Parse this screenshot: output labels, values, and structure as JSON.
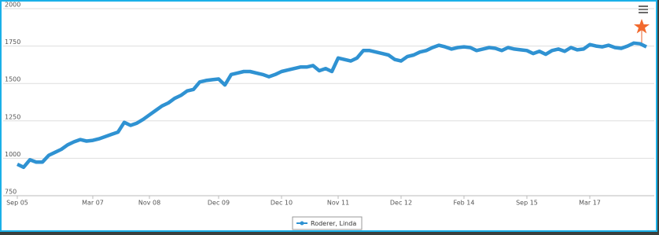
{
  "chart_data": {
    "type": "line",
    "categories": [
      "Sep 05",
      null,
      null,
      null,
      null,
      null,
      null,
      null,
      null,
      null,
      null,
      null,
      "Mar 07",
      null,
      null,
      null,
      null,
      null,
      null,
      null,
      null,
      "Nov 08",
      null,
      null,
      null,
      null,
      null,
      null,
      null,
      null,
      null,
      null,
      "Dec 09",
      null,
      null,
      null,
      null,
      null,
      null,
      null,
      null,
      null,
      "Dec 10",
      null,
      null,
      null,
      null,
      null,
      null,
      null,
      null,
      "Nov 11",
      null,
      null,
      null,
      null,
      null,
      null,
      null,
      null,
      null,
      "Dec 12",
      null,
      null,
      null,
      null,
      null,
      null,
      null,
      null,
      null,
      "Feb 14",
      null,
      null,
      null,
      null,
      null,
      null,
      null,
      null,
      null,
      "Sep 15",
      null,
      null,
      null,
      null,
      null,
      null,
      null,
      null,
      null,
      "Mar 17",
      null,
      null,
      null,
      null,
      null,
      null,
      null,
      null,
      null
    ],
    "series": [
      {
        "name": "Roderer, Linda",
        "color": "#2f92d2",
        "values": [
          960,
          940,
          990,
          975,
          975,
          1020,
          1040,
          1060,
          1090,
          1110,
          1125,
          1115,
          1120,
          1130,
          1145,
          1160,
          1175,
          1240,
          1220,
          1235,
          1260,
          1290,
          1320,
          1350,
          1370,
          1400,
          1420,
          1450,
          1460,
          1510,
          1520,
          1525,
          1530,
          1490,
          1560,
          1570,
          1580,
          1580,
          1570,
          1560,
          1545,
          1560,
          1580,
          1590,
          1600,
          1610,
          1610,
          1620,
          1585,
          1600,
          1580,
          1670,
          1660,
          1650,
          1670,
          1720,
          1720,
          1710,
          1700,
          1690,
          1660,
          1650,
          1680,
          1690,
          1710,
          1720,
          1740,
          1755,
          1745,
          1730,
          1740,
          1745,
          1740,
          1720,
          1730,
          1740,
          1735,
          1720,
          1740,
          1730,
          1725,
          1720,
          1700,
          1715,
          1695,
          1720,
          1730,
          1715,
          1740,
          1725,
          1730,
          1760,
          1750,
          1745,
          1755,
          1740,
          1735,
          1750,
          1770,
          1765,
          1745
        ]
      }
    ],
    "ylim": [
      750,
      2000
    ],
    "yticks": [
      750,
      1000,
      1250,
      1500,
      1750,
      2000
    ],
    "grid": true
  }
}
